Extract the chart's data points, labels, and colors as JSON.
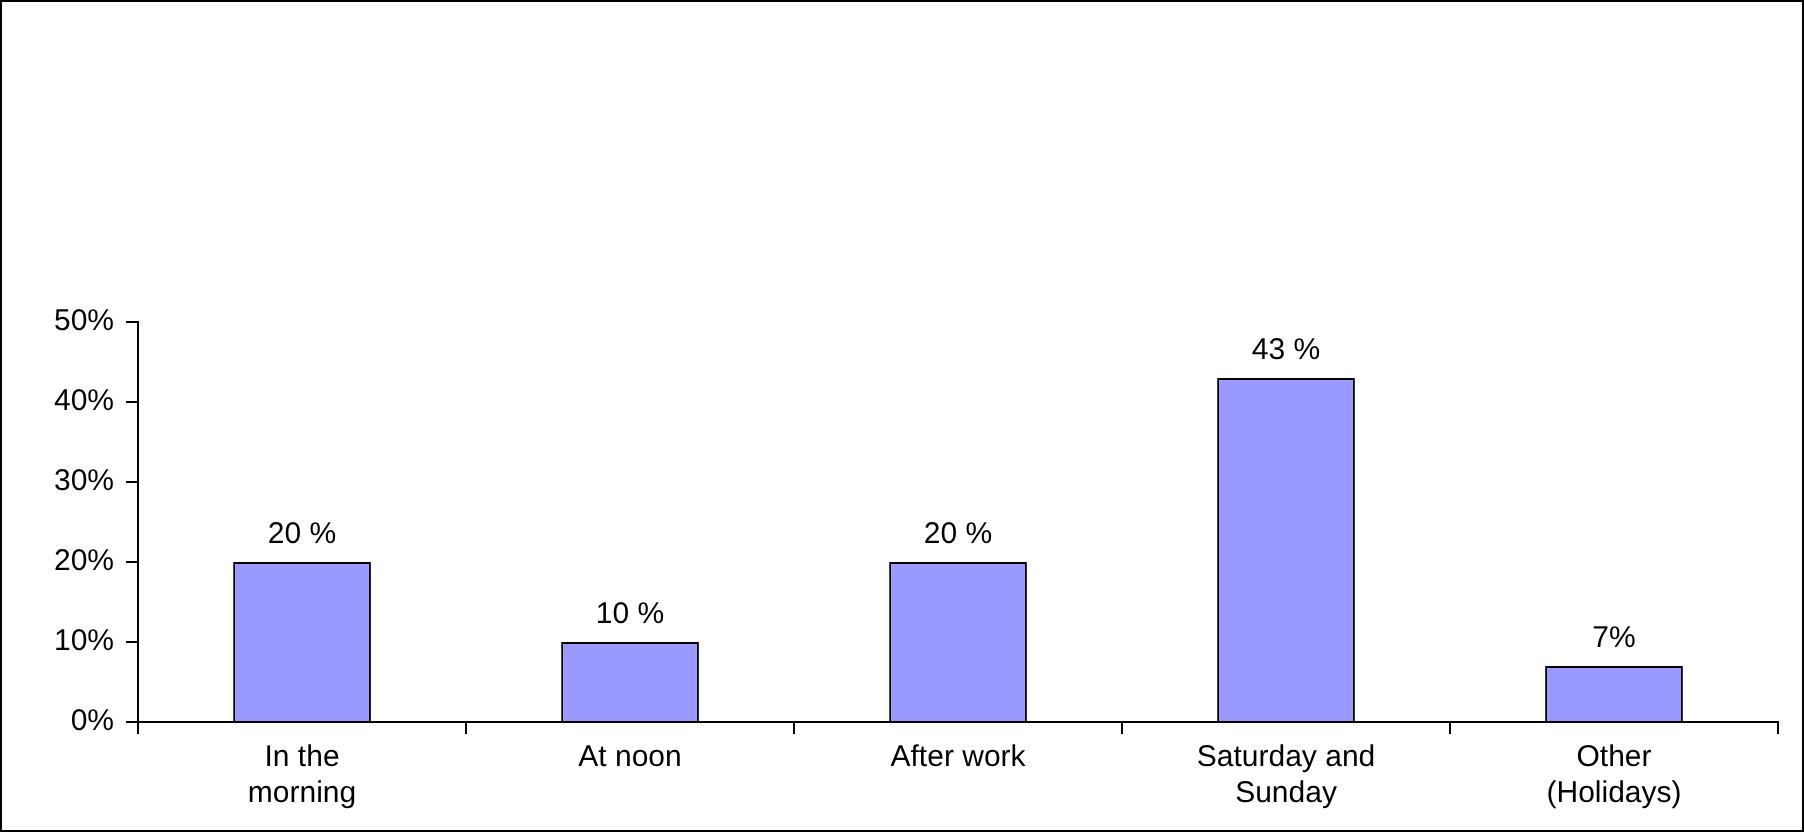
{
  "chart_data": {
    "type": "bar",
    "categories": [
      "In the morning",
      "At noon",
      "After work",
      "Saturday and Sunday",
      "Other (Holidays)"
    ],
    "values": [
      20,
      10,
      20,
      43,
      7
    ],
    "color": "#9999ff",
    "value_labels": [
      "20 %",
      "10 %",
      "20 %",
      "43 %",
      "7%"
    ],
    "ylim": [
      0,
      50
    ],
    "yticks": [
      {
        "value": 0,
        "label": "0%"
      },
      {
        "value": 10,
        "label": "10%"
      },
      {
        "value": 20,
        "label": "20%"
      },
      {
        "value": 30,
        "label": "30%"
      },
      {
        "value": 40,
        "label": "40%"
      },
      {
        "value": 50,
        "label": "50%"
      }
    ],
    "grid": false,
    "legend": false
  }
}
